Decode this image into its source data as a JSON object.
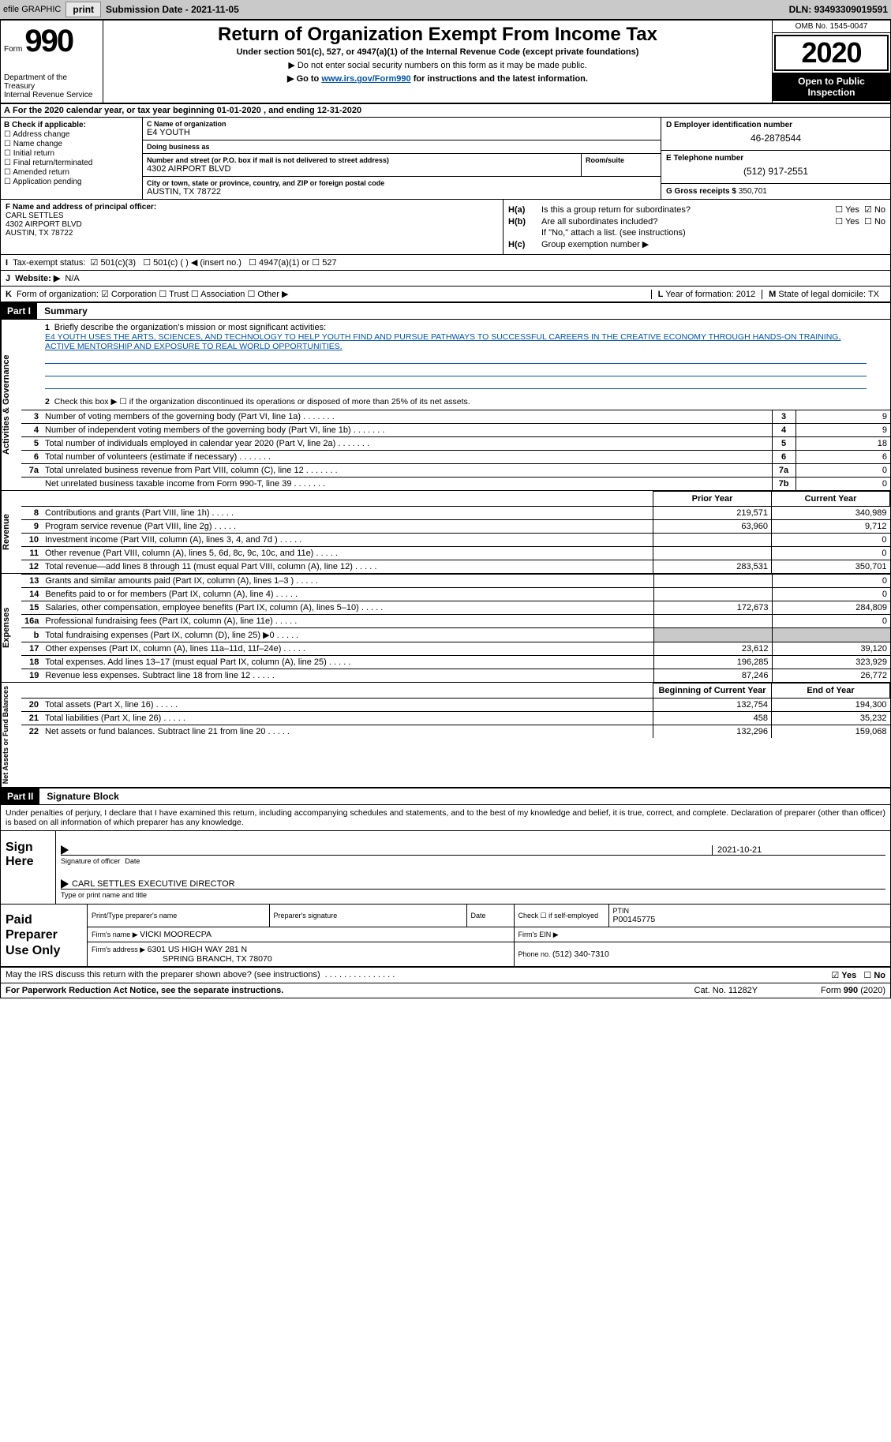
{
  "top_bar": {
    "efile_label": "efile GRAPHIC",
    "print_btn": "print",
    "submission_label": "Submission Date - ",
    "submission_date": "2021-11-05",
    "dln_label": "DLN: ",
    "dln": "93493309019591"
  },
  "header": {
    "form_word": "Form",
    "form_number": "990",
    "dept": "Department of the Treasury\nInternal Revenue Service",
    "title": "Return of Organization Exempt From Income Tax",
    "subtitle": "Under section 501(c), 527, or 4947(a)(1) of the Internal Revenue Code (except private foundations)",
    "note1": "▶ Do not enter social security numbers on this form as it may be made public.",
    "note2_pre": "▶ Go to ",
    "note2_link": "www.irs.gov/Form990",
    "note2_post": " for instructions and the latest information.",
    "omb": "OMB No. 1545-0047",
    "year": "2020",
    "open": "Open to Public Inspection"
  },
  "period": {
    "label_a": "A",
    "text": " For the 2020 calendar year, or tax year beginning ",
    "begin": "01-01-2020",
    "mid": "     , and ending ",
    "end": "12-31-2020"
  },
  "box_b": {
    "header": "B Check if applicable:",
    "items": [
      "Address change",
      "Name change",
      "Initial return",
      "Final return/terminated",
      "Amended return",
      "Application pending"
    ]
  },
  "box_c": {
    "name_lbl": "C Name of organization",
    "name": "E4 YOUTH",
    "dba_lbl": "Doing business as",
    "dba": "",
    "street_lbl": "Number and street (or P.O. box if mail is not delivered to street address)",
    "street": "4302 AIRPORT BLVD",
    "suite_lbl": "Room/suite",
    "suite": "",
    "city_lbl": "City or town, state or province, country, and ZIP or foreign postal code",
    "city": "AUSTIN, TX  78722"
  },
  "box_d": {
    "ein_lbl": "D Employer identification number",
    "ein": "46-2878544",
    "phone_lbl": "E Telephone number",
    "phone": "(512) 917-2551",
    "gross_lbl": "G Gross receipts $ ",
    "gross": "350,701"
  },
  "box_f": {
    "lbl": "F Name and address of principal officer:",
    "name": "CARL SETTLES",
    "addr1": "4302 AIRPORT BLVD",
    "addr2": "AUSTIN, TX  78722"
  },
  "box_h": {
    "ha_lbl": "H(a)",
    "ha_txt": "Is this a group return for subordinates?",
    "ha_yes": "Yes",
    "ha_no": "No",
    "hb_lbl": "H(b)",
    "hb_txt": "Are all subordinates included?",
    "hb_note": "If \"No,\" attach a list. (see instructions)",
    "hc_lbl": "H(c)",
    "hc_txt": "Group exemption number ▶"
  },
  "line_i": {
    "lbl": "I",
    "txt": "Tax-exempt status:",
    "o1": "501(c)(3)",
    "o2": "501(c) (  ) ◀ (insert no.)",
    "o3": "4947(a)(1) or",
    "o4": "527"
  },
  "line_j": {
    "lbl": "J",
    "txt": "Website: ▶",
    "val": "N/A"
  },
  "line_k": {
    "lbl": "K",
    "txt": "Form of organization:",
    "o1": "Corporation",
    "o2": "Trust",
    "o3": "Association",
    "o4": "Other ▶"
  },
  "line_l": {
    "lbl": "L",
    "txt": "Year of formation: ",
    "val": "2012"
  },
  "line_m": {
    "lbl": "M",
    "txt": "State of legal domicile: ",
    "val": "TX"
  },
  "part1": {
    "num": "Part I",
    "title": "Summary"
  },
  "summary": {
    "side1": "Activities & Governance",
    "q1_lbl": "1",
    "q1": "Briefly describe the organization's mission or most significant activities:",
    "q1_ans": "E4 YOUTH USES THE ARTS, SCIENCES, AND TECHNOLOGY TO HELP YOUTH FIND AND PURSUE PATHWAYS TO SUCCESSFUL CAREERS IN THE CREATIVE ECONOMY THROUGH HANDS-ON TRAINING, ACTIVE MENTORSHIP AND EXPOSURE TO REAL WORLD OPPORTUNITIES.",
    "q2_lbl": "2",
    "q2": "Check this box ▶ ☐ if the organization discontinued its operations or disposed of more than 25% of its net assets.",
    "rows_gov": [
      {
        "n": "3",
        "d": "Number of voting members of the governing body (Part VI, line 1a)",
        "idx": "3",
        "v": "9"
      },
      {
        "n": "4",
        "d": "Number of independent voting members of the governing body (Part VI, line 1b)",
        "idx": "4",
        "v": "9"
      },
      {
        "n": "5",
        "d": "Total number of individuals employed in calendar year 2020 (Part V, line 2a)",
        "idx": "5",
        "v": "18"
      },
      {
        "n": "6",
        "d": "Total number of volunteers (estimate if necessary)",
        "idx": "6",
        "v": "6"
      },
      {
        "n": "7a",
        "d": "Total unrelated business revenue from Part VIII, column (C), line 12",
        "idx": "7a",
        "v": "0"
      },
      {
        "n": "",
        "d": "Net unrelated business taxable income from Form 990-T, line 39",
        "idx": "7b",
        "v": "0"
      }
    ],
    "b_lbl": "b",
    "py_hdr": "Prior Year",
    "cy_hdr": "Current Year",
    "side2": "Revenue",
    "rows_rev": [
      {
        "n": "8",
        "d": "Contributions and grants (Part VIII, line 1h)",
        "py": "219,571",
        "cy": "340,989"
      },
      {
        "n": "9",
        "d": "Program service revenue (Part VIII, line 2g)",
        "py": "63,960",
        "cy": "9,712"
      },
      {
        "n": "10",
        "d": "Investment income (Part VIII, column (A), lines 3, 4, and 7d )",
        "py": "",
        "cy": "0"
      },
      {
        "n": "11",
        "d": "Other revenue (Part VIII, column (A), lines 5, 6d, 8c, 9c, 10c, and 11e)",
        "py": "",
        "cy": "0"
      },
      {
        "n": "12",
        "d": "Total revenue—add lines 8 through 11 (must equal Part VIII, column (A), line 12)",
        "py": "283,531",
        "cy": "350,701"
      }
    ],
    "side3": "Expenses",
    "rows_exp": [
      {
        "n": "13",
        "d": "Grants and similar amounts paid (Part IX, column (A), lines 1–3 )",
        "py": "",
        "cy": "0"
      },
      {
        "n": "14",
        "d": "Benefits paid to or for members (Part IX, column (A), line 4)",
        "py": "",
        "cy": "0"
      },
      {
        "n": "15",
        "d": "Salaries, other compensation, employee benefits (Part IX, column (A), lines 5–10)",
        "py": "172,673",
        "cy": "284,809"
      },
      {
        "n": "16a",
        "d": "Professional fundraising fees (Part IX, column (A), line 11e)",
        "py": "",
        "cy": "0"
      },
      {
        "n": "b",
        "d": "Total fundraising expenses (Part IX, column (D), line 25) ▶0",
        "py": "SHADE",
        "cy": "SHADE"
      },
      {
        "n": "17",
        "d": "Other expenses (Part IX, column (A), lines 11a–11d, 11f–24e)",
        "py": "23,612",
        "cy": "39,120"
      },
      {
        "n": "18",
        "d": "Total expenses. Add lines 13–17 (must equal Part IX, column (A), line 25)",
        "py": "196,285",
        "cy": "323,929"
      },
      {
        "n": "19",
        "d": "Revenue less expenses. Subtract line 18 from line 12",
        "py": "87,246",
        "cy": "26,772"
      }
    ],
    "side4": "Net Assets or Fund Balances",
    "boy_hdr": "Beginning of Current Year",
    "eoy_hdr": "End of Year",
    "rows_na": [
      {
        "n": "20",
        "d": "Total assets (Part X, line 16)",
        "py": "132,754",
        "cy": "194,300"
      },
      {
        "n": "21",
        "d": "Total liabilities (Part X, line 26)",
        "py": "458",
        "cy": "35,232"
      },
      {
        "n": "22",
        "d": "Net assets or fund balances. Subtract line 21 from line 20",
        "py": "132,296",
        "cy": "159,068"
      }
    ]
  },
  "part2": {
    "num": "Part II",
    "title": "Signature Block"
  },
  "sig": {
    "jurat": "Under penalties of perjury, I declare that I have examined this return, including accompanying schedules and statements, and to the best of my knowledge and belief, it is true, correct, and complete. Declaration of preparer (other than officer) is based on all information of which preparer has any knowledge.",
    "sign_here": "Sign Here",
    "sig_officer_lbl": "Signature of officer",
    "date_lbl": "Date",
    "sig_date": "2021-10-21",
    "name_title": "CARL SETTLES  EXECUTIVE DIRECTOR",
    "name_title_lbl": "Type or print name and title"
  },
  "prep": {
    "lbl": "Paid Preparer Use Only",
    "c1": "Print/Type preparer's name",
    "c2": "Preparer's signature",
    "c3": "Date",
    "c4_chk": "Check ☐ if self-employed",
    "c5_lbl": "PTIN",
    "c5": "P00145775",
    "firm_name_lbl": "Firm's name    ▶ ",
    "firm_name": "VICKI MOORECPA",
    "firm_ein_lbl": "Firm's EIN ▶",
    "firm_addr_lbl": "Firm's address ▶ ",
    "firm_addr1": "6301 US HIGH WAY 281 N",
    "firm_addr2": "SPRING BRANCH, TX  78070",
    "firm_phone_lbl": "Phone no. ",
    "firm_phone": "(512) 340-7310"
  },
  "discuss": {
    "txt": "May the IRS discuss this return with the preparer shown above? (see instructions)",
    "yes": "Yes",
    "no": "No"
  },
  "footer": {
    "left": "For Paperwork Reduction Act Notice, see the separate instructions.",
    "mid": "Cat. No. 11282Y",
    "right": "Form 990 (2020)"
  },
  "colors": {
    "link": "#0054a8",
    "gray_bg": "#c9c9c9"
  }
}
